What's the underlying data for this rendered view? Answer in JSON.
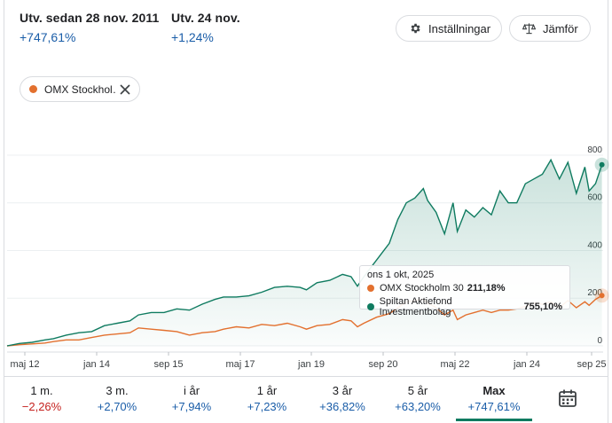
{
  "stats": [
    {
      "label": "Utv. sedan 28 nov. 2011",
      "value": "+747,61%"
    },
    {
      "label": "Utv. 24 nov.",
      "value": "+1,24%"
    }
  ],
  "buttons": {
    "settings": "Inställningar",
    "compare": "Jämför"
  },
  "chip": {
    "label": "OMX Stockhol…",
    "color": "#e3702e"
  },
  "tooltip": {
    "date": "ons 1 okt, 2025",
    "rows": [
      {
        "name": "OMX Stockholm 30",
        "value": "211,18%",
        "color": "#e3702e"
      },
      {
        "name": "Spiltan Aktiefond Investmentbolag",
        "value": "755,10%",
        "color": "#0f7b60"
      }
    ]
  },
  "periods": [
    {
      "label": "1 m.",
      "value": "−2,26%",
      "sign": "neg"
    },
    {
      "label": "3 m.",
      "value": "+2,70%",
      "sign": "pos"
    },
    {
      "label": "i år",
      "value": "+7,94%",
      "sign": "pos"
    },
    {
      "label": "1 år",
      "value": "+7,23%",
      "sign": "pos"
    },
    {
      "label": "3 år",
      "value": "+36,82%",
      "sign": "pos"
    },
    {
      "label": "5 år",
      "value": "+63,20%",
      "sign": "pos"
    },
    {
      "label": "Max",
      "value": "+747,61%",
      "sign": "pos",
      "active": true
    }
  ],
  "icons": {
    "settings": "gear-icon",
    "compare": "scale-icon",
    "chip_close": "close-icon",
    "calendar": "calendar-icon"
  },
  "chart_data": {
    "type": "line",
    "x_ticks": [
      "maj 12",
      "jan 14",
      "sep 15",
      "maj 17",
      "jan 19",
      "sep 20",
      "maj 22",
      "jan 24",
      "sep 25"
    ],
    "y_ticks": [
      0,
      200,
      400,
      600,
      800
    ],
    "ylim": [
      0,
      820
    ],
    "series": [
      {
        "name": "Spiltan Aktiefond Investmentbolag",
        "color": "#0f7b60",
        "x": [
          2011.91,
          2012.2,
          2012.5,
          2012.8,
          2013.0,
          2013.3,
          2013.6,
          2013.9,
          2014.2,
          2014.5,
          2014.8,
          2015.0,
          2015.3,
          2015.6,
          2015.9,
          2016.2,
          2016.5,
          2016.8,
          2017.0,
          2017.3,
          2017.6,
          2017.9,
          2018.2,
          2018.5,
          2018.8,
          2018.95,
          2019.2,
          2019.5,
          2019.8,
          2020.0,
          2020.15,
          2020.3,
          2020.6,
          2020.9,
          2021.1,
          2021.3,
          2021.5,
          2021.7,
          2021.8,
          2022.0,
          2022.2,
          2022.4,
          2022.5,
          2022.7,
          2022.9,
          2023.1,
          2023.3,
          2023.5,
          2023.7,
          2023.9,
          2024.1,
          2024.3,
          2024.5,
          2024.7,
          2024.9,
          2025.1,
          2025.3,
          2025.5,
          2025.6,
          2025.75,
          2025.9
        ],
        "y": [
          0,
          10,
          15,
          25,
          30,
          45,
          55,
          60,
          85,
          95,
          105,
          130,
          140,
          140,
          155,
          150,
          175,
          195,
          205,
          205,
          210,
          225,
          245,
          250,
          245,
          235,
          265,
          275,
          300,
          290,
          250,
          290,
          360,
          430,
          530,
          600,
          620,
          660,
          610,
          560,
          470,
          600,
          480,
          570,
          540,
          580,
          550,
          650,
          600,
          600,
          680,
          700,
          720,
          780,
          700,
          770,
          640,
          750,
          650,
          680,
          760
        ]
      },
      {
        "name": "OMX Stockholm 30",
        "color": "#e3702e",
        "x": [
          2011.91,
          2012.2,
          2012.5,
          2012.8,
          2013.0,
          2013.3,
          2013.6,
          2013.9,
          2014.2,
          2014.5,
          2014.8,
          2015.0,
          2015.3,
          2015.6,
          2015.9,
          2016.2,
          2016.5,
          2016.8,
          2017.0,
          2017.3,
          2017.6,
          2017.9,
          2018.2,
          2018.5,
          2018.8,
          2018.95,
          2019.2,
          2019.5,
          2019.8,
          2020.0,
          2020.15,
          2020.3,
          2020.6,
          2020.9,
          2021.1,
          2021.3,
          2021.5,
          2021.7,
          2021.8,
          2022.0,
          2022.2,
          2022.4,
          2022.5,
          2022.7,
          2022.9,
          2023.1,
          2023.3,
          2023.5,
          2023.7,
          2023.9,
          2024.1,
          2024.3,
          2024.5,
          2024.7,
          2024.9,
          2025.1,
          2025.3,
          2025.5,
          2025.6,
          2025.75,
          2025.9
        ],
        "y": [
          0,
          5,
          8,
          12,
          18,
          25,
          25,
          35,
          45,
          50,
          55,
          75,
          70,
          65,
          60,
          45,
          55,
          60,
          70,
          80,
          75,
          90,
          85,
          95,
          80,
          70,
          85,
          90,
          110,
          105,
          80,
          95,
          120,
          135,
          160,
          185,
          190,
          195,
          180,
          160,
          130,
          150,
          110,
          130,
          140,
          150,
          140,
          150,
          150,
          155,
          165,
          180,
          175,
          185,
          160,
          190,
          160,
          185,
          170,
          195,
          211
        ]
      }
    ],
    "tooltip_at": 2025.75
  }
}
